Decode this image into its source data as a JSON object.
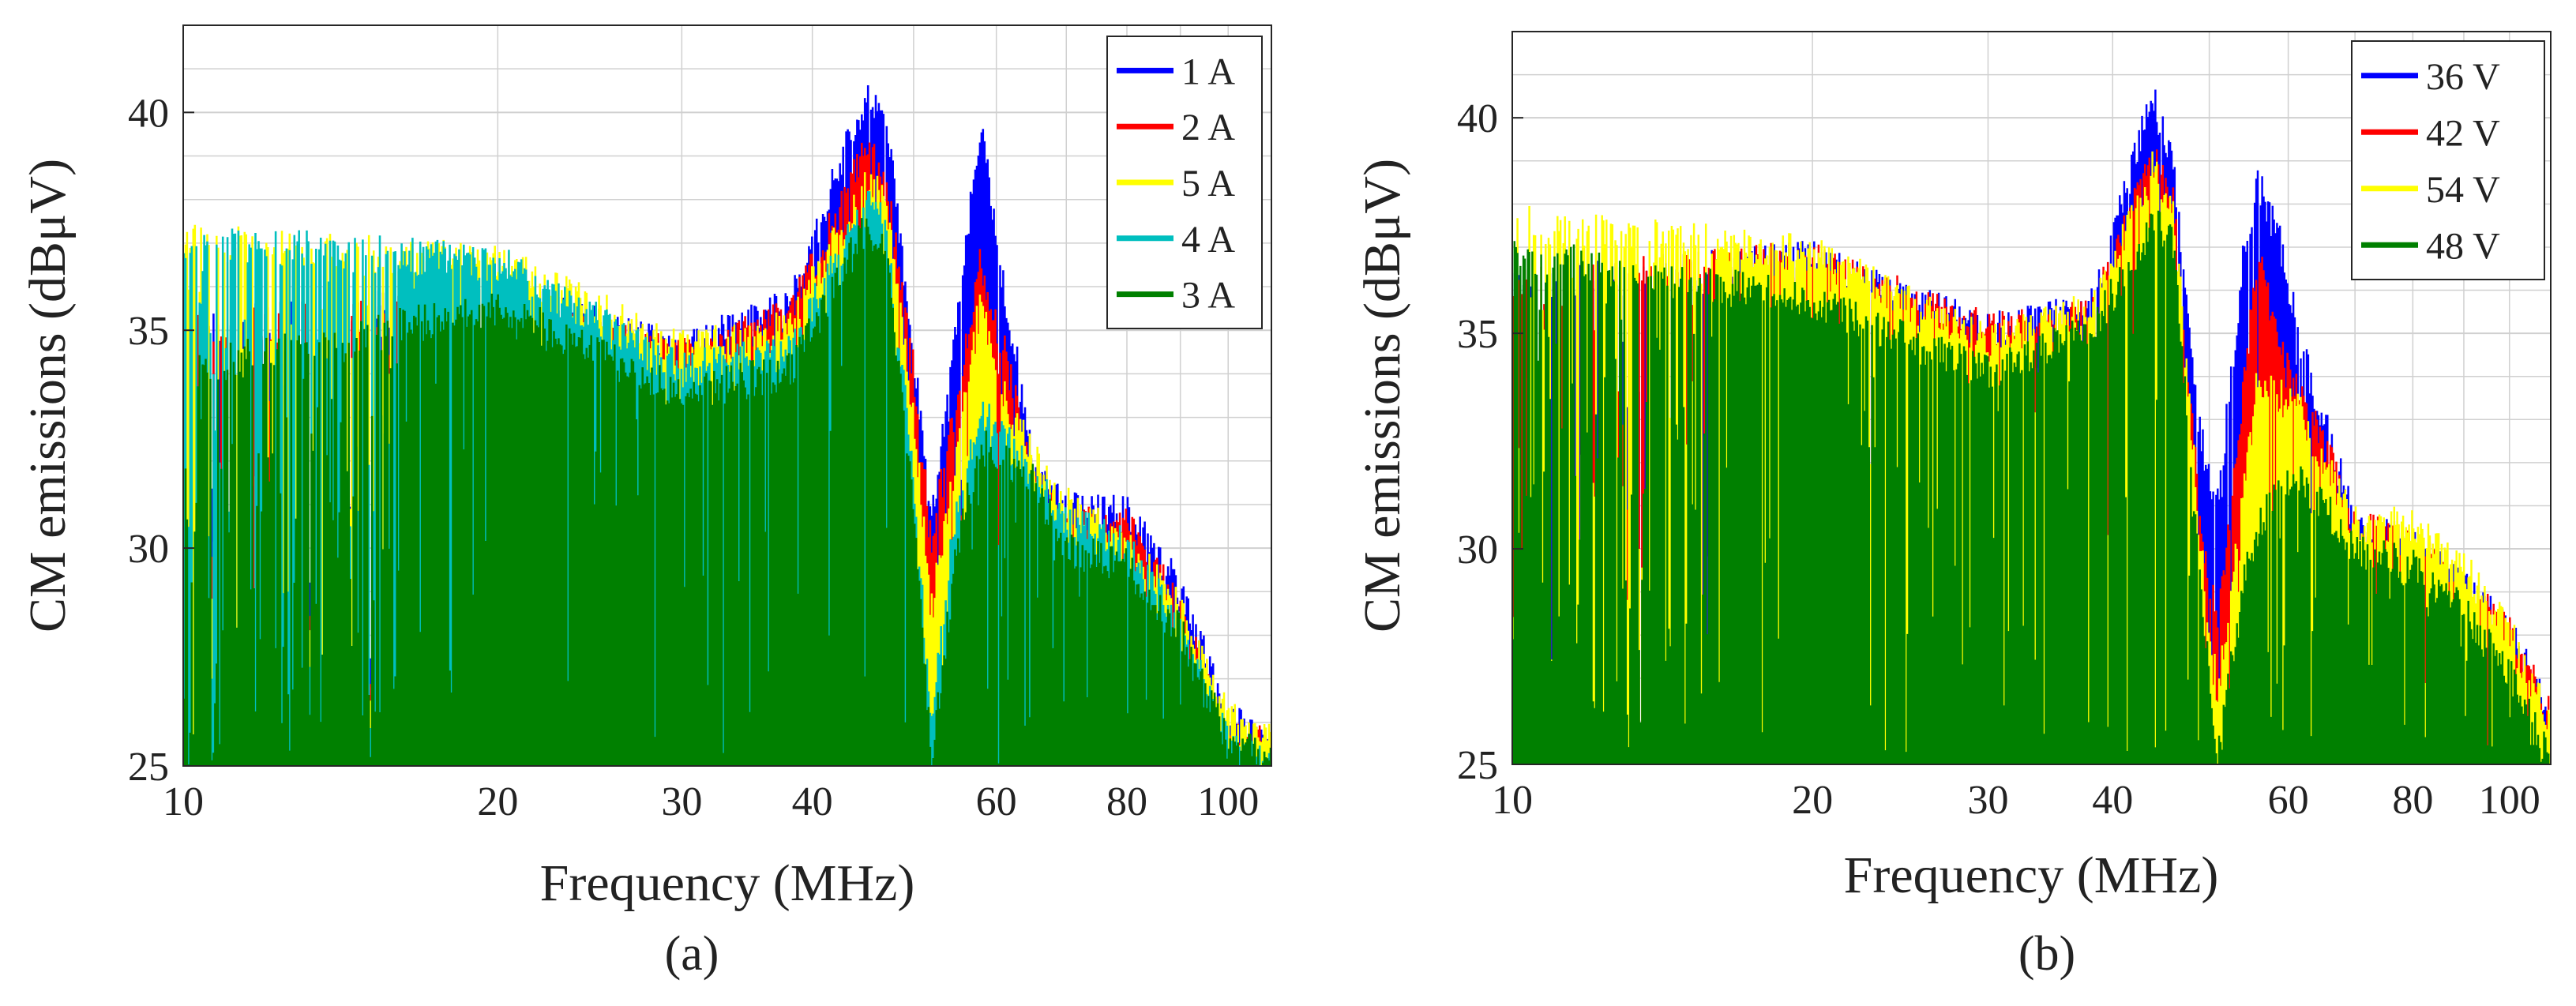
{
  "figure": {
    "colors": {
      "blue": "#0000ff",
      "red": "#ff0000",
      "yellow": "#ffff00",
      "cyan": "#00bfbf",
      "green": "#008000",
      "grid": "#d0d0d0",
      "frame": "#262626"
    }
  },
  "chart_data": [
    {
      "type": "bar",
      "panel": "(a)",
      "title": "",
      "xlabel": "Frequency (MHz)",
      "ylabel": "CM emissions (dBμV)",
      "xscale": "log",
      "xlim": [
        10,
        110
      ],
      "ylim": [
        25,
        42
      ],
      "xticks": [
        10,
        20,
        30,
        40,
        60,
        80,
        100
      ],
      "xtick_labels": [
        "10",
        "20",
        "30",
        "40",
        "60",
        "80",
        "100"
      ],
      "yticks": [
        25,
        30,
        35,
        40
      ],
      "ytick_labels": [
        "25",
        "30",
        "35",
        "40"
      ],
      "grid": true,
      "legend_position": "top-right",
      "series": [
        {
          "name": "1 A",
          "color": "#0000ff",
          "envelope": [
            [
              10,
              35.5
            ],
            [
              20,
              36.2
            ],
            [
              30,
              35.0
            ],
            [
              38,
              36.0
            ],
            [
              45,
              40.8
            ],
            [
              47,
              40.3
            ],
            [
              50,
              35.0
            ],
            [
              52,
              31.0
            ],
            [
              55,
              35.5
            ],
            [
              58,
              40.2
            ],
            [
              61,
              36.5
            ],
            [
              65,
              32.5
            ],
            [
              70,
              31.3
            ],
            [
              80,
              31.2
            ],
            [
              90,
              29.5
            ],
            [
              100,
              26.5
            ],
            [
              110,
              26.0
            ]
          ]
        },
        {
          "name": "2 A",
          "color": "#ff0000",
          "envelope": [
            [
              10,
              35.5
            ],
            [
              20,
              36.0
            ],
            [
              30,
              34.8
            ],
            [
              38,
              35.8
            ],
            [
              45,
              39.5
            ],
            [
              47,
              39.0
            ],
            [
              50,
              34.5
            ],
            [
              52,
              30.5
            ],
            [
              55,
              34.0
            ],
            [
              58,
              37.0
            ],
            [
              61,
              35.0
            ],
            [
              65,
              32.0
            ],
            [
              70,
              31.0
            ],
            [
              80,
              31.0
            ],
            [
              90,
              29.0
            ],
            [
              100,
              26.0
            ],
            [
              110,
              26.0
            ]
          ]
        },
        {
          "name": "5 A",
          "color": "#ffff00",
          "envelope": [
            [
              10,
              37.5
            ],
            [
              20,
              37.0
            ],
            [
              30,
              35.0
            ],
            [
              38,
              35.5
            ],
            [
              45,
              38.8
            ],
            [
              47,
              38.5
            ],
            [
              50,
              33.5
            ],
            [
              52,
              29.0
            ],
            [
              55,
              32.5
            ],
            [
              58,
              36.2
            ],
            [
              61,
              34.0
            ],
            [
              65,
              32.5
            ],
            [
              70,
              31.5
            ],
            [
              80,
              30.5
            ],
            [
              90,
              29.0
            ],
            [
              100,
              26.5
            ],
            [
              110,
              26.0
            ]
          ]
        },
        {
          "name": "4 A",
          "color": "#00bfbf",
          "envelope": [
            [
              10,
              37.5
            ],
            [
              20,
              37.0
            ],
            [
              30,
              34.5
            ],
            [
              38,
              35.0
            ],
            [
              45,
              38.3
            ],
            [
              47,
              38.0
            ],
            [
              50,
              32.0
            ],
            [
              52,
              26.5
            ],
            [
              55,
              31.5
            ],
            [
              58,
              33.5
            ],
            [
              61,
              33.0
            ],
            [
              65,
              32.0
            ],
            [
              70,
              31.0
            ],
            [
              80,
              30.5
            ],
            [
              90,
              28.5
            ],
            [
              100,
              26.0
            ],
            [
              110,
              25.5
            ]
          ]
        },
        {
          "name": "3 A",
          "color": "#008000",
          "envelope": [
            [
              10,
              34.5
            ],
            [
              20,
              36.0
            ],
            [
              30,
              34.0
            ],
            [
              38,
              34.5
            ],
            [
              45,
              37.8
            ],
            [
              47,
              37.2
            ],
            [
              50,
              31.5
            ],
            [
              52,
              25.5
            ],
            [
              55,
              30.5
            ],
            [
              58,
              32.8
            ],
            [
              61,
              32.5
            ],
            [
              65,
              32.0
            ],
            [
              70,
              30.5
            ],
            [
              80,
              30.0
            ],
            [
              90,
              28.5
            ],
            [
              100,
              26.0
            ],
            [
              110,
              25.5
            ]
          ]
        }
      ]
    },
    {
      "type": "bar",
      "panel": "(b)",
      "title": "",
      "xlabel": "Frequency (MHz)",
      "ylabel": "CM emissions (dBμV)",
      "xscale": "log",
      "xlim": [
        10,
        110
      ],
      "ylim": [
        25,
        42
      ],
      "xticks": [
        10,
        20,
        30,
        40,
        60,
        80,
        100
      ],
      "xtick_labels": [
        "10",
        "20",
        "30",
        "40",
        "60",
        "80",
        "100"
      ],
      "yticks": [
        25,
        30,
        35,
        40
      ],
      "ytick_labels": [
        "25",
        "30",
        "35",
        "40"
      ],
      "grid": true,
      "legend_position": "top-right",
      "series": [
        {
          "name": "36 V",
          "color": "#0000ff",
          "envelope": [
            [
              10,
              36.5
            ],
            [
              20,
              37.2
            ],
            [
              30,
              35.5
            ],
            [
              38,
              36.0
            ],
            [
              44,
              41.0
            ],
            [
              46,
              39.5
            ],
            [
              49,
              33.0
            ],
            [
              51,
              31.5
            ],
            [
              54,
              37.0
            ],
            [
              56,
              39.0
            ],
            [
              59,
              37.5
            ],
            [
              62,
              35.0
            ],
            [
              65,
              33.5
            ],
            [
              70,
              31.0
            ],
            [
              80,
              30.5
            ],
            [
              90,
              29.5
            ],
            [
              100,
              28.5
            ],
            [
              110,
              26.5
            ]
          ]
        },
        {
          "name": "42 V",
          "color": "#ff0000",
          "envelope": [
            [
              10,
              36.5
            ],
            [
              20,
              37.2
            ],
            [
              30,
              35.5
            ],
            [
              38,
              35.8
            ],
            [
              44,
              39.5
            ],
            [
              46,
              38.5
            ],
            [
              49,
              31.0
            ],
            [
              51,
              28.5
            ],
            [
              54,
              34.0
            ],
            [
              56,
              37.2
            ],
            [
              59,
              35.0
            ],
            [
              62,
              34.0
            ],
            [
              65,
              33.0
            ],
            [
              70,
              31.0
            ],
            [
              80,
              30.5
            ],
            [
              90,
              29.5
            ],
            [
              100,
              28.5
            ],
            [
              110,
              26.5
            ]
          ]
        },
        {
          "name": "54 V",
          "color": "#ffff00",
          "envelope": [
            [
              10,
              38.0
            ],
            [
              20,
              37.3
            ],
            [
              30,
              35.2
            ],
            [
              38,
              36.0
            ],
            [
              44,
              39.3
            ],
            [
              46,
              38.5
            ],
            [
              49,
              30.5
            ],
            [
              51,
              27.0
            ],
            [
              54,
              31.5
            ],
            [
              56,
              34.5
            ],
            [
              59,
              34.0
            ],
            [
              62,
              33.5
            ],
            [
              65,
              32.5
            ],
            [
              70,
              31.0
            ],
            [
              80,
              31.0
            ],
            [
              90,
              30.0
            ],
            [
              100,
              28.5
            ],
            [
              110,
              26.5
            ]
          ]
        },
        {
          "name": "48 V",
          "color": "#008000",
          "envelope": [
            [
              10,
              37.3
            ],
            [
              20,
              36.2
            ],
            [
              30,
              34.5
            ],
            [
              38,
              35.5
            ],
            [
              44,
              38.0
            ],
            [
              46,
              37.5
            ],
            [
              49,
              29.5
            ],
            [
              51,
              25.5
            ],
            [
              54,
              29.5
            ],
            [
              56,
              31.0
            ],
            [
              59,
              32.0
            ],
            [
              62,
              32.0
            ],
            [
              65,
              31.5
            ],
            [
              70,
              30.5
            ],
            [
              80,
              30.0
            ],
            [
              90,
              29.0
            ],
            [
              100,
              27.5
            ],
            [
              110,
              25.5
            ]
          ]
        }
      ]
    }
  ]
}
